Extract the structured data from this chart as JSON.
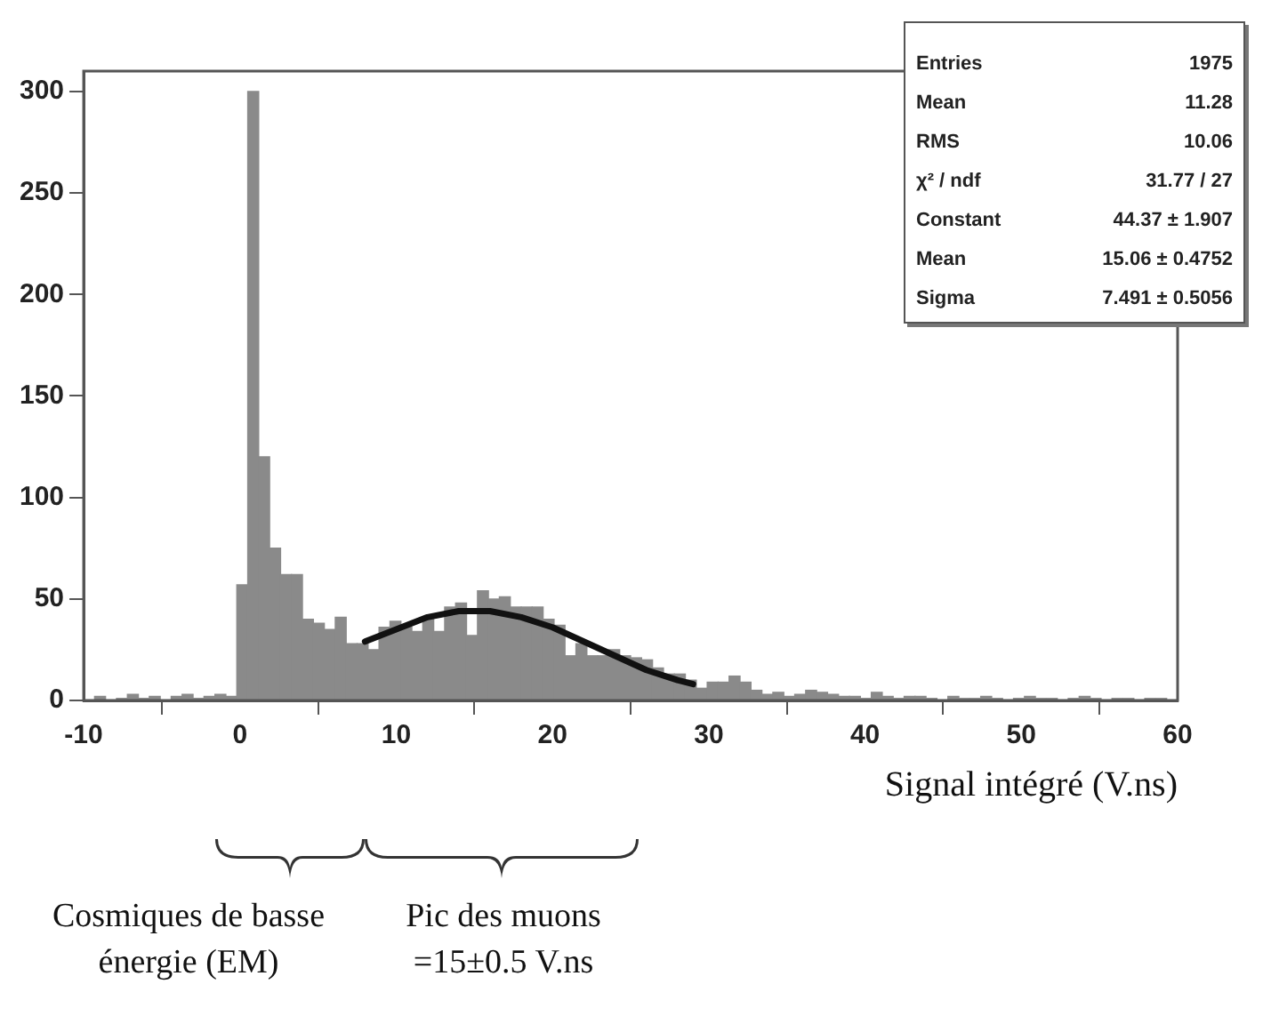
{
  "chart_data": {
    "type": "histogram",
    "xlabel": "Signal intégré (V.ns)",
    "bins": [
      -10,
      -9.3,
      -8.6,
      -7.9,
      -7.2,
      -6.5,
      -5.8,
      -5.1,
      -4.4,
      -3.7,
      -3,
      -2.3,
      -1.6,
      -0.9,
      -0.2,
      0.5,
      1.2,
      1.9,
      2.6,
      3.3,
      4,
      4.7,
      5.4,
      6.1,
      6.8,
      7.5,
      8.2,
      8.9,
      9.6,
      10.3,
      11,
      11.7,
      12.4,
      13.1,
      13.8,
      14.5,
      15.2,
      15.9,
      16.6,
      17.3,
      18,
      18.7,
      19.4,
      20.1,
      20.8,
      21.5,
      22.2,
      22.9,
      23.6,
      24.3,
      25,
      25.7,
      26.4,
      27.1,
      27.8,
      28.5,
      29.2,
      29.9,
      30.6,
      31.3,
      32,
      32.7,
      33.4,
      34.1,
      34.8,
      35.5,
      36.2,
      36.9,
      37.6,
      38.3,
      39,
      39.7,
      40.4,
      41.1,
      41.8,
      42.5,
      43.2,
      43.9,
      44.6,
      45.3,
      46,
      46.7,
      47.4,
      48.1,
      48.8,
      49.5,
      50.2,
      50.9,
      51.6,
      52.3,
      53,
      53.7,
      54.4,
      55.1,
      55.8,
      56.5,
      57.2,
      57.9,
      58.6,
      59.3,
      60
    ],
    "values": [
      0,
      2,
      0,
      1,
      3,
      1,
      2,
      0,
      2,
      3,
      1,
      2,
      3,
      2,
      57,
      300,
      120,
      75,
      62,
      62,
      40,
      38,
      35,
      41,
      28,
      28,
      25,
      36,
      39,
      36,
      34,
      40,
      34,
      46,
      48,
      32,
      54,
      50,
      51,
      46,
      46,
      46,
      40,
      37,
      22,
      28,
      22,
      22,
      25,
      22,
      21,
      20,
      16,
      13,
      13,
      10,
      6,
      9,
      9,
      12,
      9,
      5,
      3,
      4,
      2,
      3,
      5,
      4,
      3,
      2,
      2,
      1,
      4,
      2,
      1,
      2,
      2,
      1,
      0,
      2,
      1,
      1,
      2,
      1,
      0,
      1,
      2,
      1,
      1,
      0,
      1,
      2,
      1,
      0,
      1,
      1,
      0,
      1,
      1,
      0
    ],
    "color": "#8a8a8a",
    "series": [
      {
        "type": "line",
        "color": "#111111",
        "x": [
          8,
          10,
          12,
          14,
          15,
          16,
          18,
          20,
          22,
          24,
          26,
          28,
          29
        ],
        "values": [
          29,
          35,
          41,
          44,
          44,
          44,
          41,
          36,
          29,
          22,
          15,
          10,
          8
        ]
      }
    ],
    "xlim": [
      -10,
      60
    ],
    "xticks": [
      -10,
      0,
      10,
      20,
      30,
      40,
      50,
      60
    ],
    "ylim": [
      0,
      310
    ],
    "yticks": [
      0,
      50,
      100,
      150,
      200,
      250,
      300
    ],
    "grid": false,
    "legend": false,
    "annotations": [
      "Entries",
      "1975",
      "Mean",
      "11.28",
      "RMS",
      "10.06",
      "χ² / ndf",
      "31.77 / 27",
      "Constant",
      "44.37 ± 1.907",
      "Mean",
      "15.06 ± 0.4752",
      "Sigma",
      "7.491 ± 0.5056",
      "Cosmiques de basse énergie (EM)",
      "Pic des muons =15±0.5 V.ns"
    ]
  }
}
